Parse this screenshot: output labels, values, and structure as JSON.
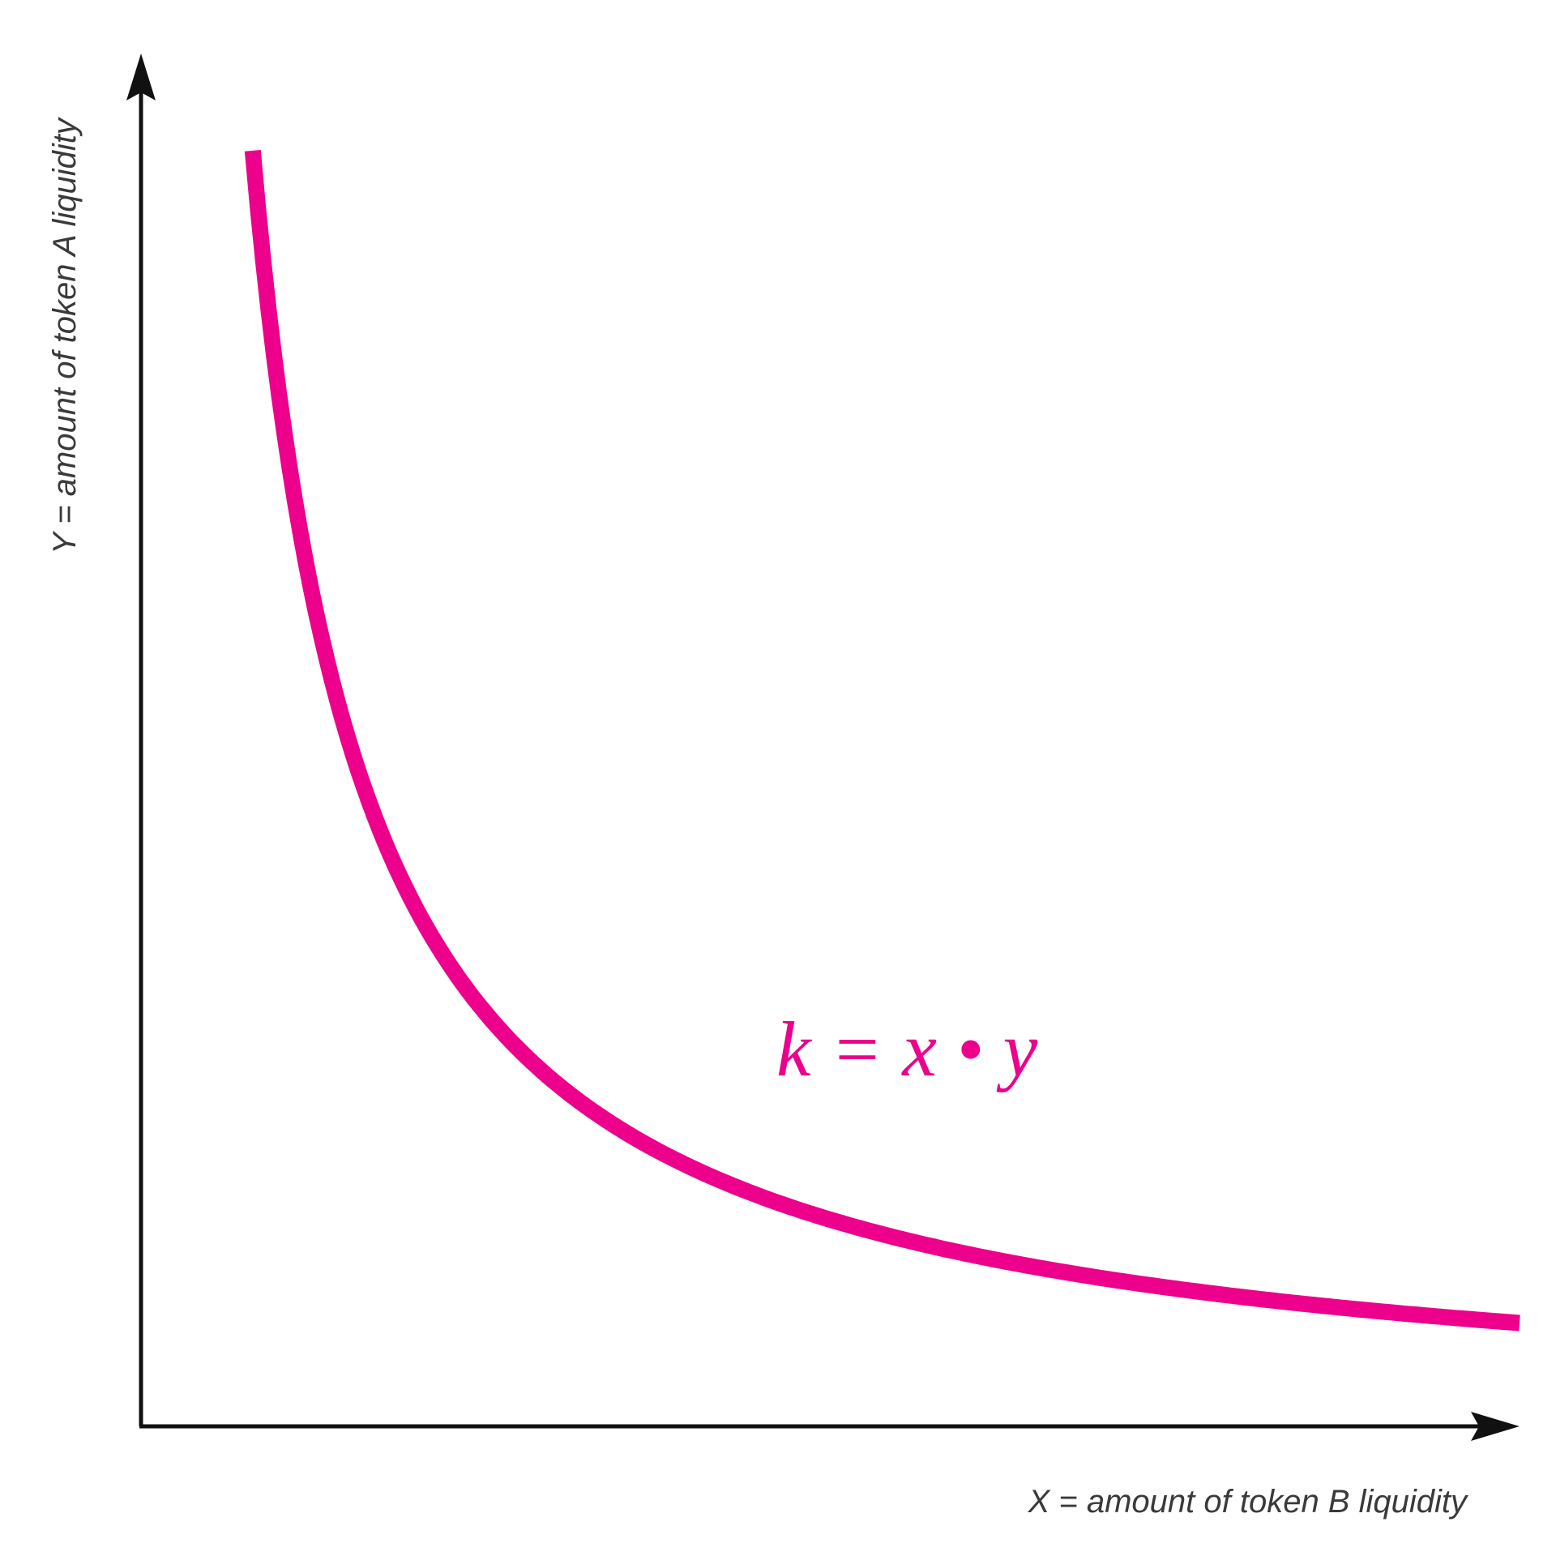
{
  "chart_data": {
    "type": "line",
    "title": "",
    "xlabel": "X  =  amount of token B liquidity",
    "ylabel": "Y  =  amount of token A liquidity",
    "annotation": "k = x • y",
    "grid": false,
    "legend": "none",
    "xlim": [
      0,
      10
    ],
    "ylim": [
      0,
      10
    ],
    "series": [
      {
        "color": "#ec008c",
        "k": 7.5,
        "x": [
          0.81,
          0.9,
          1.0,
          1.2,
          1.5,
          2.0,
          2.5,
          3.0,
          3.5,
          4.0,
          5.0,
          6.0,
          7.0,
          8.0,
          9.0,
          10.0
        ],
        "y": [
          9.26,
          8.33,
          7.5,
          6.25,
          5.0,
          3.75,
          3.0,
          2.5,
          2.14,
          1.88,
          1.5,
          1.25,
          1.07,
          0.94,
          0.83,
          0.75
        ]
      }
    ]
  },
  "colors": {
    "curve": "#ec008c",
    "axes": "#111111",
    "label": "#3a3a3a"
  }
}
